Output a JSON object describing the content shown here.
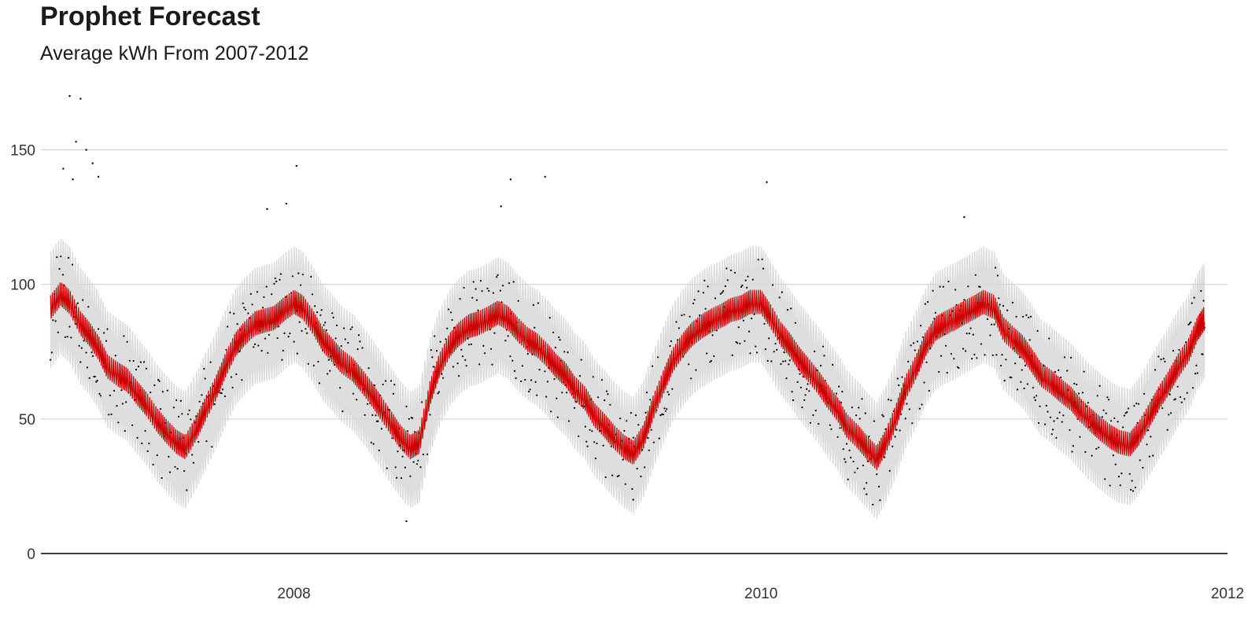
{
  "chart_data": {
    "type": "line",
    "title": "Prophet Forecast",
    "subtitle": "Average kWh From 2007-2012",
    "xlabel": "",
    "ylabel": "",
    "x_range": [
      "2006-12-01",
      "2012-01-01"
    ],
    "ylim": [
      0,
      175
    ],
    "x_ticks": [
      {
        "date": "2008-01-01",
        "label": "2008"
      },
      {
        "date": "2010-01-01",
        "label": "2010"
      },
      {
        "date": "2012-01-01",
        "label": "2012"
      }
    ],
    "y_ticks": [
      0,
      50,
      100,
      150
    ],
    "grid": "horizontal",
    "colors": {
      "forecast": "#cc0000",
      "interval": "#d9d9d9",
      "actual": "#000000",
      "grid": "#cccccc",
      "axis": "#000000"
    },
    "series": [
      {
        "role": "forecast",
        "x": [
          "2006-12-16",
          "2007-01-01",
          "2007-01-15",
          "2007-02-01",
          "2007-02-15",
          "2007-03-01",
          "2007-03-15",
          "2007-04-01",
          "2007-04-15",
          "2007-05-01",
          "2007-05-15",
          "2007-06-01",
          "2007-06-15",
          "2007-07-01",
          "2007-07-15",
          "2007-08-01",
          "2007-08-15",
          "2007-09-01",
          "2007-09-15",
          "2007-10-01",
          "2007-10-15",
          "2007-11-01",
          "2007-11-15",
          "2007-12-01",
          "2007-12-15",
          "2008-01-01",
          "2008-01-15",
          "2008-02-01",
          "2008-02-15",
          "2008-03-01",
          "2008-03-15",
          "2008-04-01",
          "2008-04-15",
          "2008-05-01",
          "2008-05-15",
          "2008-06-01",
          "2008-06-15",
          "2008-07-01",
          "2008-07-15",
          "2008-08-01",
          "2008-08-15",
          "2008-09-01",
          "2008-09-15",
          "2008-10-01",
          "2008-10-15",
          "2008-11-01",
          "2008-11-15",
          "2008-12-01",
          "2008-12-15",
          "2009-01-01",
          "2009-01-15",
          "2009-02-01",
          "2009-02-15",
          "2009-03-01",
          "2009-03-15",
          "2009-04-01",
          "2009-04-15",
          "2009-05-01",
          "2009-05-15",
          "2009-06-01",
          "2009-06-15",
          "2009-07-01",
          "2009-07-15",
          "2009-08-01",
          "2009-08-15",
          "2009-09-01",
          "2009-09-15",
          "2009-10-01",
          "2009-10-15",
          "2009-11-01",
          "2009-11-15",
          "2009-12-01",
          "2009-12-15",
          "2010-01-01",
          "2010-01-15",
          "2010-02-01",
          "2010-02-15",
          "2010-03-01",
          "2010-03-15",
          "2010-04-01",
          "2010-04-15",
          "2010-05-01",
          "2010-05-15",
          "2010-06-01",
          "2010-06-15",
          "2010-07-01",
          "2010-07-15",
          "2010-08-01",
          "2010-08-15",
          "2010-09-01",
          "2010-09-15",
          "2010-10-01",
          "2010-10-15",
          "2010-11-01",
          "2010-11-15",
          "2010-12-01",
          "2010-12-15",
          "2011-01-01",
          "2011-01-15",
          "2011-02-01",
          "2011-02-15",
          "2011-03-01",
          "2011-03-15",
          "2011-04-01",
          "2011-04-15",
          "2011-05-01",
          "2011-05-15",
          "2011-06-01",
          "2011-06-15",
          "2011-07-01",
          "2011-07-15",
          "2011-08-01",
          "2011-08-15",
          "2011-09-01",
          "2011-09-15",
          "2011-10-01",
          "2011-10-15",
          "2011-11-01",
          "2011-11-15",
          "2011-11-26"
        ],
        "y": [
          90,
          95,
          92,
          84,
          80,
          75,
          68,
          65,
          63,
          58,
          54,
          48,
          44,
          40,
          38,
          45,
          52,
          60,
          68,
          76,
          80,
          84,
          85,
          86,
          89,
          92,
          90,
          84,
          78,
          74,
          70,
          67,
          63,
          58,
          53,
          47,
          42,
          38,
          40,
          58,
          68,
          76,
          80,
          83,
          84,
          86,
          88,
          86,
          82,
          78,
          76,
          72,
          68,
          65,
          60,
          56,
          50,
          46,
          42,
          38,
          36,
          42,
          52,
          62,
          70,
          76,
          80,
          83,
          85,
          87,
          89,
          90,
          92,
          92,
          87,
          80,
          76,
          71,
          67,
          62,
          57,
          52,
          46,
          42,
          38,
          34,
          40,
          50,
          60,
          68,
          76,
          82,
          84,
          86,
          88,
          90,
          92,
          90,
          82,
          78,
          75,
          70,
          65,
          62,
          59,
          56,
          52,
          48,
          45,
          42,
          40,
          39,
          43,
          50,
          56,
          62,
          68,
          74,
          82,
          86
        ]
      },
      {
        "role": "interval_upper",
        "y_at_peaks": [
          115,
          112,
          120,
          113,
          118,
          115,
          118
        ]
      },
      {
        "role": "interval_lower",
        "y_at_troughs": [
          20,
          8,
          15,
          12,
          22
        ]
      }
    ],
    "actual_outliers": [
      {
        "x": "2007-01-15",
        "y": 170
      },
      {
        "x": "2007-02-01",
        "y": 169
      },
      {
        "x": "2007-01-25",
        "y": 153
      },
      {
        "x": "2007-02-10",
        "y": 150
      },
      {
        "x": "2007-02-20",
        "y": 145
      },
      {
        "x": "2007-03-01",
        "y": 140
      },
      {
        "x": "2007-01-05",
        "y": 143
      },
      {
        "x": "2007-01-20",
        "y": 139
      },
      {
        "x": "2008-01-05",
        "y": 144
      },
      {
        "x": "2007-11-20",
        "y": 128
      },
      {
        "x": "2007-12-20",
        "y": 130
      },
      {
        "x": "2009-01-28",
        "y": 140
      },
      {
        "x": "2008-12-05",
        "y": 139
      },
      {
        "x": "2008-11-20",
        "y": 129
      },
      {
        "x": "2010-01-10",
        "y": 138
      },
      {
        "x": "2010-11-15",
        "y": 125
      },
      {
        "x": "2008-06-25",
        "y": 12
      },
      {
        "x": "2009-06-15",
        "y": 20
      },
      {
        "x": "2010-06-15",
        "y": 22
      }
    ]
  }
}
